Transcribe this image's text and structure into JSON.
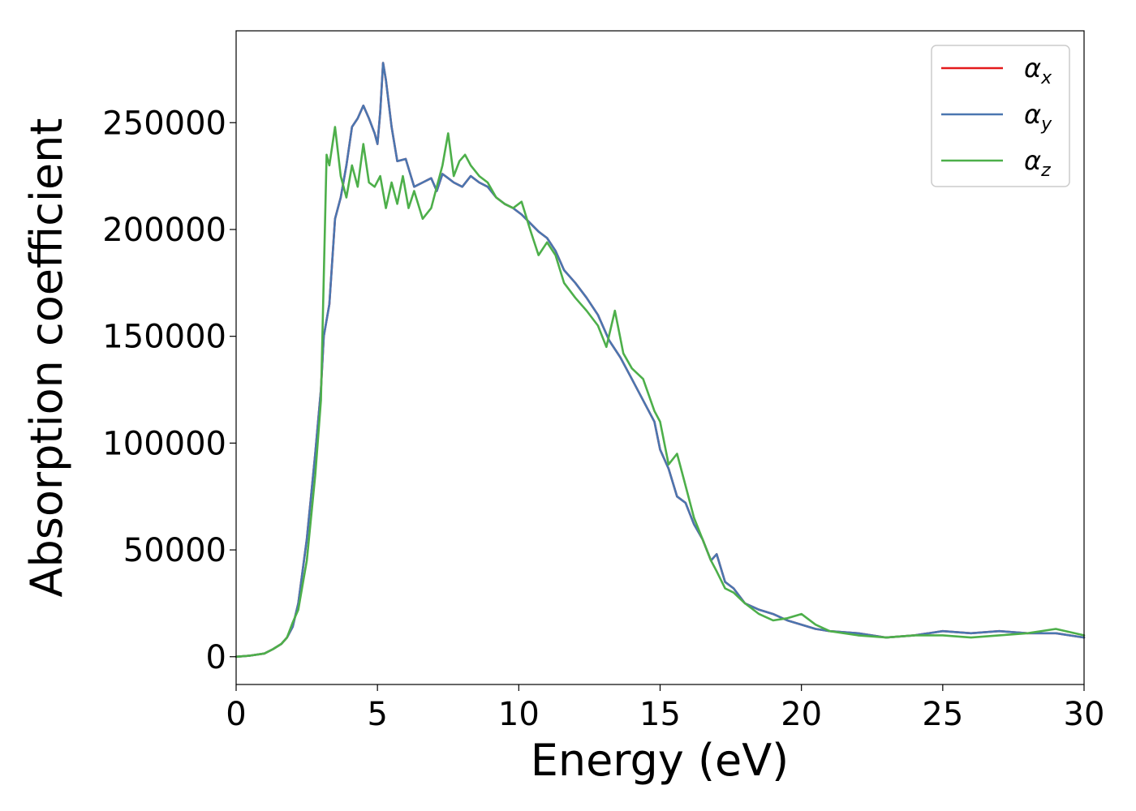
{
  "chart_data": {
    "type": "line",
    "xlabel": "Energy (eV)",
    "ylabel": "Absorption coefficient",
    "xlim": [
      0,
      30
    ],
    "ylim": [
      -13000,
      293000
    ],
    "xticks": [
      0,
      5,
      10,
      15,
      20,
      25,
      30
    ],
    "yticks": [
      0,
      50000,
      100000,
      150000,
      200000,
      250000
    ],
    "legend_position": "top-right",
    "grid": false,
    "series": [
      {
        "name": "α_x",
        "legend_main": "α",
        "legend_sub": "x",
        "color": "#e41a1c",
        "x": [
          0,
          0.5,
          1,
          1.3,
          1.6,
          1.8,
          2,
          2.2,
          2.5,
          2.8,
          3,
          3.1,
          3.3,
          3.5,
          3.7,
          3.9,
          4.1,
          4.3,
          4.5,
          4.7,
          4.9,
          5.0,
          5.1,
          5.2,
          5.3,
          5.5,
          5.7,
          6.0,
          6.3,
          6.6,
          6.9,
          7.1,
          7.3,
          7.5,
          7.7,
          8.0,
          8.3,
          8.6,
          8.9,
          9.2,
          9.5,
          9.8,
          10.1,
          10.4,
          10.7,
          11.0,
          11.3,
          11.6,
          12.0,
          12.4,
          12.8,
          13.2,
          13.6,
          14.0,
          14.4,
          14.8,
          15.0,
          15.3,
          15.6,
          15.9,
          16.2,
          16.5,
          16.8,
          17.0,
          17.3,
          17.6,
          18.0,
          18.5,
          19.0,
          19.5,
          20.0,
          20.5,
          21,
          22,
          23,
          24,
          25,
          26,
          27,
          28,
          29,
          30
        ],
        "values": [
          0,
          500,
          1500,
          3500,
          6000,
          9000,
          14000,
          25000,
          55000,
          95000,
          125000,
          150000,
          165000,
          205000,
          215000,
          230000,
          248000,
          252000,
          258000,
          252000,
          245000,
          240000,
          255000,
          278000,
          270000,
          248000,
          232000,
          233000,
          220000,
          222000,
          224000,
          218000,
          226000,
          224000,
          222000,
          220000,
          225000,
          222000,
          220000,
          215000,
          212000,
          210000,
          207000,
          203000,
          199000,
          196000,
          190000,
          181000,
          175000,
          168000,
          160000,
          148000,
          140000,
          130000,
          120000,
          110000,
          97000,
          88000,
          75000,
          72000,
          62000,
          55000,
          45000,
          48000,
          35000,
          32000,
          25000,
          22000,
          20000,
          17000,
          15000,
          13000,
          12000,
          11000,
          9000,
          10000,
          12000,
          11000,
          12000,
          11000,
          11000,
          9000
        ]
      },
      {
        "name": "α_y",
        "legend_main": "α",
        "legend_sub": "y",
        "color": "#4a76b0",
        "x": [
          0,
          0.5,
          1,
          1.3,
          1.6,
          1.8,
          2,
          2.2,
          2.5,
          2.8,
          3,
          3.1,
          3.3,
          3.5,
          3.7,
          3.9,
          4.1,
          4.3,
          4.5,
          4.7,
          4.9,
          5.0,
          5.1,
          5.2,
          5.3,
          5.5,
          5.7,
          6.0,
          6.3,
          6.6,
          6.9,
          7.1,
          7.3,
          7.5,
          7.7,
          8.0,
          8.3,
          8.6,
          8.9,
          9.2,
          9.5,
          9.8,
          10.1,
          10.4,
          10.7,
          11.0,
          11.3,
          11.6,
          12.0,
          12.4,
          12.8,
          13.2,
          13.6,
          14.0,
          14.4,
          14.8,
          15.0,
          15.3,
          15.6,
          15.9,
          16.2,
          16.5,
          16.8,
          17.0,
          17.3,
          17.6,
          18.0,
          18.5,
          19.0,
          19.5,
          20.0,
          20.5,
          21,
          22,
          23,
          24,
          25,
          26,
          27,
          28,
          29,
          30
        ],
        "values": [
          0,
          500,
          1500,
          3500,
          6000,
          9000,
          14000,
          25000,
          55000,
          95000,
          125000,
          150000,
          165000,
          205000,
          215000,
          230000,
          248000,
          252000,
          258000,
          252000,
          245000,
          240000,
          255000,
          278000,
          270000,
          248000,
          232000,
          233000,
          220000,
          222000,
          224000,
          218000,
          226000,
          224000,
          222000,
          220000,
          225000,
          222000,
          220000,
          215000,
          212000,
          210000,
          207000,
          203000,
          199000,
          196000,
          190000,
          181000,
          175000,
          168000,
          160000,
          148000,
          140000,
          130000,
          120000,
          110000,
          97000,
          88000,
          75000,
          72000,
          62000,
          55000,
          45000,
          48000,
          35000,
          32000,
          25000,
          22000,
          20000,
          17000,
          15000,
          13000,
          12000,
          11000,
          9000,
          10000,
          12000,
          11000,
          12000,
          11000,
          11000,
          9000
        ]
      },
      {
        "name": "α_z",
        "legend_main": "α",
        "legend_sub": "z",
        "color": "#4daf4a",
        "x": [
          0,
          0.5,
          1,
          1.3,
          1.6,
          1.8,
          2,
          2.2,
          2.5,
          2.8,
          3,
          3.2,
          3.3,
          3.5,
          3.7,
          3.9,
          4.1,
          4.3,
          4.5,
          4.7,
          4.9,
          5.1,
          5.3,
          5.5,
          5.7,
          5.9,
          6.1,
          6.3,
          6.6,
          6.9,
          7.1,
          7.3,
          7.5,
          7.7,
          7.9,
          8.1,
          8.3,
          8.6,
          8.9,
          9.2,
          9.5,
          9.8,
          10.1,
          10.4,
          10.7,
          11.0,
          11.3,
          11.6,
          12.0,
          12.4,
          12.8,
          13.1,
          13.4,
          13.7,
          14.0,
          14.4,
          14.8,
          15.0,
          15.3,
          15.6,
          15.9,
          16.2,
          16.5,
          16.8,
          17.0,
          17.3,
          17.6,
          18.0,
          18.5,
          19.0,
          19.5,
          20.0,
          20.5,
          21,
          22,
          23,
          24,
          25,
          26,
          27,
          28,
          29,
          30
        ],
        "values": [
          0,
          500,
          1500,
          3500,
          6000,
          9000,
          16000,
          22000,
          45000,
          85000,
          120000,
          235000,
          230000,
          248000,
          225000,
          215000,
          230000,
          220000,
          240000,
          222000,
          220000,
          225000,
          210000,
          222000,
          212000,
          225000,
          210000,
          218000,
          205000,
          210000,
          220000,
          230000,
          245000,
          225000,
          232000,
          235000,
          230000,
          225000,
          222000,
          215000,
          212000,
          210000,
          213000,
          200000,
          188000,
          194000,
          188000,
          175000,
          168000,
          162000,
          155000,
          145000,
          162000,
          142000,
          135000,
          130000,
          115000,
          110000,
          90000,
          95000,
          80000,
          65000,
          55000,
          45000,
          40000,
          32000,
          30000,
          25000,
          20000,
          17000,
          18000,
          20000,
          15000,
          12000,
          10000,
          9000,
          10000,
          10000,
          9000,
          10000,
          11000,
          13000,
          10000
        ]
      }
    ]
  }
}
